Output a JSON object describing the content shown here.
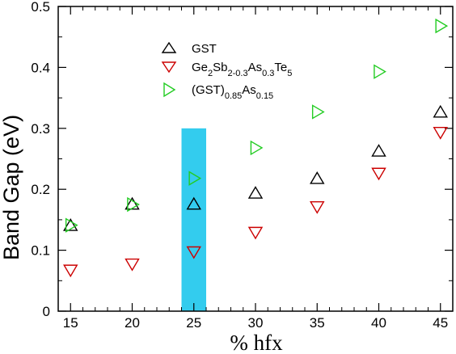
{
  "chart_data": {
    "type": "scatter",
    "xlabel": "% hfx",
    "ylabel": "Band Gap (eV)",
    "xlim": [
      14,
      46
    ],
    "ylim": [
      0,
      0.5
    ],
    "xticks": [
      "15",
      "20",
      "25",
      "30",
      "35",
      "40",
      "45"
    ],
    "yticks": [
      "0",
      "0.1",
      "0.2",
      "0.3",
      "0.4",
      "0.5"
    ],
    "highlight_band": {
      "x_from": 24,
      "x_to": 26,
      "y_from": 0,
      "y_to": 0.3,
      "color": "#33ccee"
    },
    "legend_position": "top-center",
    "series": [
      {
        "name": "GST",
        "marker": "triangle-up",
        "color": "#000000",
        "x": [
          15,
          20,
          25,
          30,
          35,
          40,
          45
        ],
        "y": [
          0.14,
          0.175,
          0.175,
          0.193,
          0.217,
          0.262,
          0.326
        ]
      },
      {
        "name": "Ge2Sb2-0.3As0.3Te5",
        "marker": "triangle-down",
        "color": "#cc0000",
        "x": [
          15,
          20,
          25,
          30,
          35,
          40,
          45
        ],
        "y": [
          0.068,
          0.078,
          0.098,
          0.13,
          0.172,
          0.227,
          0.294
        ]
      },
      {
        "name": "(GST)0.85As0.15",
        "marker": "triangle-right",
        "color": "#22cc22",
        "x": [
          15,
          20,
          25,
          30,
          35,
          40,
          45
        ],
        "y": [
          0.141,
          0.175,
          0.218,
          0.268,
          0.327,
          0.393,
          0.468
        ]
      }
    ]
  }
}
